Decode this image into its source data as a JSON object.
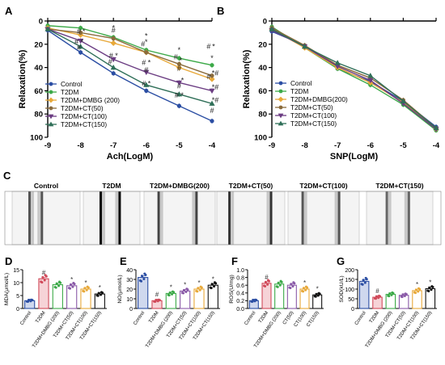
{
  "figure": {
    "panel_letters": [
      "A",
      "B",
      "C",
      "D",
      "E",
      "F",
      "G"
    ]
  },
  "colors": {
    "control": "#2b4ea3",
    "t2dm": "#3daa49",
    "dmbg": "#e8a93a",
    "ct50": "#8a6b3c",
    "ct100": "#6b3c82",
    "ct150": "#2f6f58",
    "sig": "#d14a5a"
  },
  "legend_entries": [
    "Control",
    "T2DM",
    "T2DM+DMBG (200)",
    "T2DM+CT(50)",
    "T2DM+CT(100)",
    "T2DM+CT(150)"
  ],
  "panelC": {
    "labels": [
      "Control",
      "T2DM",
      "T2DM+DMBG(200)",
      "T2DM+CT(50)",
      "T2DM+CT(100)",
      "T2DM+CT(150)"
    ]
  },
  "chart_data": [
    {
      "panel": "A",
      "type": "line",
      "xlabel": "Ach(LogM)",
      "ylabel": "Relaxation(%)",
      "x": [
        -9,
        -8,
        -7,
        -6,
        -5,
        -4
      ],
      "xlim": [
        -9,
        -4
      ],
      "ylim": [
        0,
        100
      ],
      "y_inverted": true,
      "x_tick_labels": [
        "-9",
        "-8",
        "-7",
        "-6",
        "-5",
        "-4"
      ],
      "y_tick_labels": [
        "0",
        "20",
        "40",
        "60",
        "80",
        "100"
      ],
      "legend_position": "bottom-left",
      "series": [
        {
          "name": "Control",
          "color_key": "control",
          "marker": "circle",
          "values": [
            8,
            27,
            45,
            60,
            73,
            86
          ]
        },
        {
          "name": "T2DM",
          "color_key": "t2dm",
          "marker": "circle",
          "values": [
            4,
            6,
            14,
            25,
            32,
            38
          ]
        },
        {
          "name": "T2DM+DMBG (200)",
          "color_key": "dmbg",
          "marker": "diamond",
          "values": [
            6,
            12,
            19,
            27,
            40,
            50
          ]
        },
        {
          "name": "T2DM+CT(50)",
          "color_key": "ct50",
          "marker": "circle",
          "values": [
            7,
            10,
            15,
            27,
            37,
            47
          ]
        },
        {
          "name": "T2DM+CT(100)",
          "color_key": "ct100",
          "marker": "triangle-down",
          "values": [
            7,
            17,
            33,
            44,
            53,
            60
          ]
        },
        {
          "name": "T2DM+CT(150)",
          "color_key": "ct150",
          "marker": "triangle-up",
          "values": [
            7,
            22,
            40,
            55,
            63,
            71
          ]
        }
      ],
      "annotations": [
        {
          "text": "*",
          "x": -8,
          "y": 3
        },
        {
          "text": "*",
          "x": -7,
          "y": 8
        },
        {
          "text": "*",
          "x": -6,
          "y": 20
        },
        {
          "text": "*",
          "x": -5,
          "y": 27
        },
        {
          "text": "*",
          "x": -4,
          "y": 34
        },
        {
          "text": "#",
          "x": -7,
          "y": 10
        },
        {
          "text": "#",
          "x": -8.05,
          "y": 11
        },
        {
          "text": "*",
          "x": -7.9,
          "y": 11
        },
        {
          "text": "*",
          "x": -6,
          "y": 15
        },
        {
          "text": "#",
          "x": -4.1,
          "y": 24
        },
        {
          "text": "*",
          "x": -3.95,
          "y": 24
        },
        {
          "text": "# *",
          "x": -8.05,
          "y": 20
        },
        {
          "text": "#",
          "x": -8.05,
          "y": 25
        },
        {
          "text": "# *",
          "x": -7,
          "y": 32
        },
        {
          "text": "#",
          "x": -7.1,
          "y": 37
        },
        {
          "text": "#",
          "x": -6.1,
          "y": 22
        },
        {
          "text": "# *",
          "x": -6,
          "y": 38
        },
        {
          "text": "#",
          "x": -6,
          "y": 44
        },
        {
          "text": "#",
          "x": -5.1,
          "y": 33
        },
        {
          "text": "*",
          "x": -4.95,
          "y": 36
        },
        {
          "text": "#",
          "x": -5,
          "y": 43
        },
        {
          "text": "*",
          "x": -4.9,
          "y": 53
        },
        {
          "text": "#",
          "x": -5,
          "y": 58
        },
        {
          "text": "#",
          "x": -4.1,
          "y": 50
        },
        {
          "text": "*#",
          "x": -3.9,
          "y": 47
        },
        {
          "text": "*#",
          "x": -3.9,
          "y": 59
        },
        {
          "text": "*#",
          "x": -3.9,
          "y": 70
        },
        {
          "text": "# *",
          "x": -6,
          "y": 56
        },
        {
          "text": "# *",
          "x": -5,
          "y": 66
        },
        {
          "text": "#",
          "x": -4,
          "y": 79
        }
      ]
    },
    {
      "panel": "B",
      "type": "line",
      "xlabel": "SNP(LogM)",
      "ylabel": "Relaxation(%)",
      "x": [
        -9,
        -8,
        -7,
        -6,
        -5,
        -4
      ],
      "xlim": [
        -9,
        -4
      ],
      "ylim": [
        0,
        100
      ],
      "y_inverted": true,
      "x_tick_labels": [
        "-9",
        "-8",
        "-7",
        "-6",
        "-5",
        "-4"
      ],
      "y_tick_labels": [
        "0",
        "20",
        "40",
        "60",
        "80",
        "100"
      ],
      "legend_position": "bottom-left",
      "series": [
        {
          "name": "Control",
          "color_key": "control",
          "marker": "circle",
          "values": [
            9,
            21,
            41,
            52,
            69,
            91
          ]
        },
        {
          "name": "T2DM",
          "color_key": "t2dm",
          "marker": "circle",
          "values": [
            5,
            23,
            41,
            55,
            72,
            94
          ]
        },
        {
          "name": "T2DM+DMBG(200)",
          "color_key": "dmbg",
          "marker": "diamond",
          "values": [
            7,
            23,
            40,
            53,
            70,
            93
          ]
        },
        {
          "name": "T2DM+CT(50)",
          "color_key": "ct50",
          "marker": "circle",
          "values": [
            6,
            21,
            38,
            49,
            68,
            92
          ]
        },
        {
          "name": "T2DM+CT(100)",
          "color_key": "ct100",
          "marker": "triangle-down",
          "values": [
            8,
            22,
            39,
            51,
            71,
            93
          ]
        },
        {
          "name": "T2DM+CT(150)",
          "color_key": "ct150",
          "marker": "triangle-up",
          "values": [
            7,
            22,
            36,
            47,
            69,
            92
          ]
        }
      ]
    },
    {
      "panel": "D",
      "type": "bar",
      "ylabel": "MDA(μmol/L)",
      "categories": [
        "Control",
        "T2DM",
        "T2DM+DMBG (200)",
        "T2DM+CT(50)",
        "T2DM+CT(100)",
        "T2DM+CT(150)"
      ],
      "values": [
        3,
        11.5,
        9.2,
        8.8,
        7.5,
        5.6
      ],
      "ylim": [
        0,
        15
      ],
      "y_tick_labels": [
        "0",
        "5",
        "10",
        "15"
      ],
      "marks": [
        "",
        "#",
        "",
        "*",
        "*",
        "*"
      ]
    },
    {
      "panel": "E",
      "type": "bar",
      "ylabel": "NO(μmol/L)",
      "categories": [
        "Control",
        "T2DM",
        "T2DM+DMBG (200)",
        "T2DM+CT(50)",
        "T2DM+CT(100)",
        "T2DM+CT(150)"
      ],
      "values": [
        32,
        8,
        15.5,
        18,
        20,
        24
      ],
      "ylim": [
        0,
        40
      ],
      "y_tick_labels": [
        "0",
        "10",
        "20",
        "30",
        "40"
      ],
      "marks": [
        "",
        "#",
        "*",
        "*",
        "*",
        "*"
      ]
    },
    {
      "panel": "F",
      "type": "bar",
      "ylabel": "ROS(U/mg)",
      "categories": [
        "Control",
        "T2DM",
        "T2DM+DMBG (200)",
        "CT(50)",
        "CT(100)",
        "CT(150)"
      ],
      "values": [
        0.2,
        0.65,
        0.63,
        0.6,
        0.5,
        0.35
      ],
      "ylim": [
        0,
        1.0
      ],
      "y_tick_labels": [
        "0.0",
        "0.2",
        "0.4",
        "0.6",
        "0.8",
        "1.0"
      ],
      "marks": [
        "",
        "#",
        "",
        "",
        "*",
        "*"
      ]
    },
    {
      "panel": "G",
      "type": "bar",
      "ylabel": "SOD(kU/L)",
      "categories": [
        "Control",
        "T2DM",
        "T2DM+DMBG (200)",
        "T2DM+CT(50)",
        "T2DM+CT(100)",
        "T2DM+CT(150)"
      ],
      "values": [
        140,
        58,
        73,
        68,
        92,
        102
      ],
      "ylim": [
        0,
        200
      ],
      "y_tick_labels": [
        "0",
        "50",
        "100",
        "150",
        "200"
      ],
      "marks": [
        "",
        "#",
        "",
        "",
        "*",
        "*"
      ]
    }
  ]
}
